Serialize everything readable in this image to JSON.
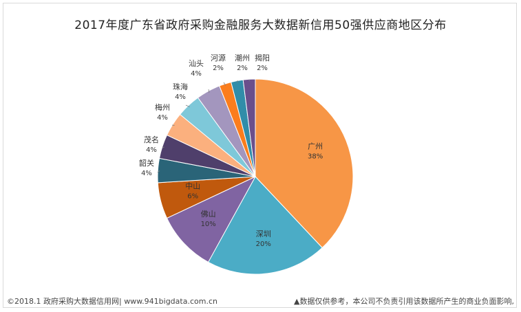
{
  "chart_data": {
    "type": "pie",
    "title": "2017年度广东省政府采购金融服务大数据新信用50强供应商地区分布",
    "slices": [
      {
        "label": "广州",
        "value_label": "38%",
        "value": 38,
        "color": "#f79646"
      },
      {
        "label": "深圳",
        "value_label": "20%",
        "value": 20,
        "color": "#4bacc6"
      },
      {
        "label": "佛山",
        "value_label": "10%",
        "value": 10,
        "color": "#8064a2"
      },
      {
        "label": "中山",
        "value_label": "6%",
        "value": 6,
        "color": "#c0590d"
      },
      {
        "label": "韶关",
        "value_label": "4%",
        "value": 4,
        "color": "#2a6478"
      },
      {
        "label": "茂名",
        "value_label": "4%",
        "value": 4,
        "color": "#4f3f6b"
      },
      {
        "label": "梅州",
        "value_label": "4%",
        "value": 4,
        "color": "#fbb07e"
      },
      {
        "label": "珠海",
        "value_label": "4%",
        "value": 4,
        "color": "#7ec8d9"
      },
      {
        "label": "汕头",
        "value_label": "4%",
        "value": 4,
        "color": "#a396be"
      },
      {
        "label": "河源",
        "value_label": "2%",
        "value": 2,
        "color": "#fb7d1d"
      },
      {
        "label": "潮州",
        "value_label": "2%",
        "value": 2,
        "color": "#318da9"
      },
      {
        "label": "揭阳",
        "value_label": "2%",
        "value": 2,
        "color": "#6a4f8c"
      }
    ]
  },
  "footer": {
    "left": "©2018.1 政府采购大数据信用网| www.941bigdata.com.cn",
    "right": "▲数据仅供参考，本公司不负责引用该数据所产生的商业负面影响,"
  }
}
